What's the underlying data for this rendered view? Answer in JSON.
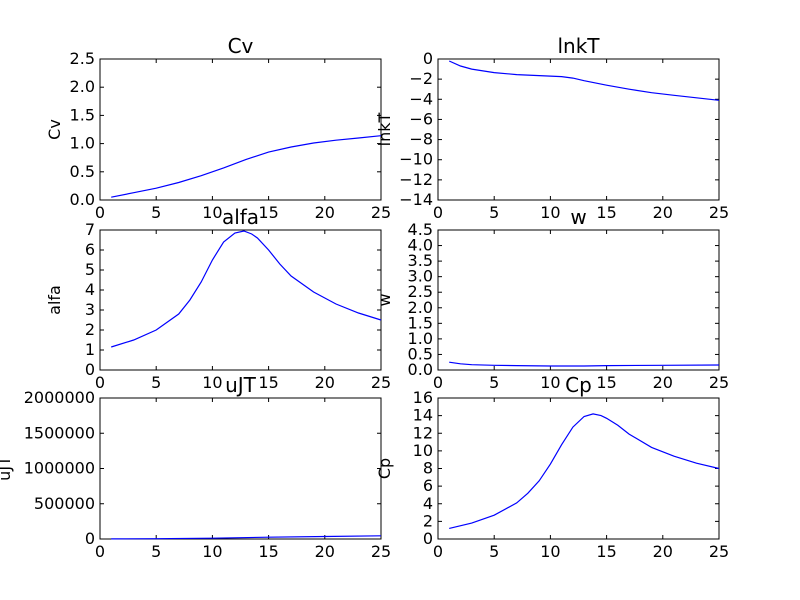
{
  "figure": {
    "colors": {
      "line": "#0000ff",
      "axes": "#000000",
      "background": "#ffffff"
    }
  },
  "chart_data": [
    {
      "type": "line",
      "title": "Cv",
      "ylabel": "Cv",
      "xlabel": "",
      "xlim": [
        0,
        25
      ],
      "ylim": [
        0,
        2.5
      ],
      "xticks": [
        0,
        5,
        10,
        15,
        20,
        25
      ],
      "xtick_labels": [
        "0",
        "5",
        "10",
        "15",
        "20",
        "25"
      ],
      "yticks": [
        0,
        0.5,
        1,
        1.5,
        2,
        2.5
      ],
      "ytick_labels": [
        "0.0",
        "0.5",
        "1.0",
        "1.5",
        "2.0",
        "2.5"
      ],
      "grid": false,
      "x": [
        1,
        3,
        5,
        7,
        9,
        11,
        13,
        15,
        17,
        19,
        21,
        23,
        25
      ],
      "y": [
        0.05,
        0.13,
        0.21,
        0.31,
        0.43,
        0.57,
        0.72,
        0.85,
        0.94,
        1.01,
        1.06,
        1.1,
        1.14
      ]
    },
    {
      "type": "line",
      "title": "lnkT",
      "ylabel": "lnkT",
      "xlabel": "",
      "xlim": [
        0,
        25
      ],
      "ylim": [
        -14,
        0
      ],
      "xticks": [
        0,
        5,
        10,
        15,
        20,
        25
      ],
      "xtick_labels": [
        "0",
        "5",
        "10",
        "15",
        "20",
        "25"
      ],
      "yticks": [
        -14,
        -12,
        -10,
        -8,
        -6,
        -4,
        -2,
        0
      ],
      "ytick_labels": [
        "−14",
        "−12",
        "−10",
        "−8",
        "−6",
        "−4",
        "−2",
        "0"
      ],
      "grid": false,
      "x": [
        1,
        2,
        3,
        5,
        7,
        9,
        11,
        12,
        13,
        15,
        17,
        19,
        21,
        23,
        25
      ],
      "y": [
        -0.2,
        -0.7,
        -1.0,
        -1.35,
        -1.55,
        -1.65,
        -1.75,
        -1.9,
        -2.15,
        -2.6,
        -3.0,
        -3.35,
        -3.6,
        -3.85,
        -4.1
      ]
    },
    {
      "type": "line",
      "title": "alfa",
      "ylabel": "alfa",
      "xlabel": "",
      "xlim": [
        0,
        25
      ],
      "ylim": [
        0,
        7
      ],
      "xticks": [
        0,
        5,
        10,
        15,
        20,
        25
      ],
      "xtick_labels": [
        "0",
        "5",
        "10",
        "15",
        "20",
        "25"
      ],
      "yticks": [
        0,
        1,
        2,
        3,
        4,
        5,
        6,
        7
      ],
      "ytick_labels": [
        "0",
        "1",
        "2",
        "3",
        "4",
        "5",
        "6",
        "7"
      ],
      "grid": false,
      "x": [
        1,
        3,
        5,
        7,
        8,
        9,
        10,
        11,
        12,
        12.8,
        13.5,
        14,
        15,
        16,
        17,
        19,
        21,
        23,
        25
      ],
      "y": [
        1.15,
        1.5,
        2.0,
        2.8,
        3.5,
        4.4,
        5.5,
        6.4,
        6.85,
        6.95,
        6.8,
        6.6,
        6.0,
        5.3,
        4.7,
        3.9,
        3.3,
        2.85,
        2.5
      ]
    },
    {
      "type": "line",
      "title": "w",
      "ylabel": "w",
      "xlabel": "",
      "xlim": [
        0,
        25
      ],
      "ylim": [
        0,
        4.5
      ],
      "xticks": [
        0,
        5,
        10,
        15,
        20,
        25
      ],
      "xtick_labels": [
        "0",
        "5",
        "10",
        "15",
        "20",
        "25"
      ],
      "yticks": [
        0,
        0.5,
        1,
        1.5,
        2,
        2.5,
        3,
        3.5,
        4,
        4.5
      ],
      "ytick_labels": [
        "0.0",
        "0.5",
        "1.0",
        "1.5",
        "2.0",
        "2.5",
        "3.0",
        "3.5",
        "4.0",
        "4.5"
      ],
      "grid": false,
      "x": [
        1,
        2,
        3,
        5,
        7,
        10,
        13,
        15,
        20,
        25
      ],
      "y": [
        0.25,
        0.2,
        0.17,
        0.15,
        0.14,
        0.13,
        0.13,
        0.14,
        0.15,
        0.16
      ]
    },
    {
      "type": "line",
      "title": "uJT",
      "ylabel": "uJT",
      "xlabel": "",
      "xlim": [
        0,
        25
      ],
      "ylim": [
        0,
        2000000
      ],
      "xticks": [
        0,
        5,
        10,
        15,
        20,
        25
      ],
      "xtick_labels": [
        "0",
        "5",
        "10",
        "15",
        "20",
        "25"
      ],
      "yticks": [
        0,
        500000,
        1000000,
        1500000,
        2000000
      ],
      "ytick_labels": [
        "0",
        "500000",
        "1000000",
        "1500000",
        "2000000"
      ],
      "grid": false,
      "x": [
        1,
        5,
        10,
        15,
        20,
        25
      ],
      "y": [
        1000,
        4000,
        12000,
        25000,
        36000,
        45000
      ]
    },
    {
      "type": "line",
      "title": "Cp",
      "ylabel": "Cp",
      "xlabel": "",
      "xlim": [
        0,
        25
      ],
      "ylim": [
        0,
        16
      ],
      "xticks": [
        0,
        5,
        10,
        15,
        20,
        25
      ],
      "xtick_labels": [
        "0",
        "5",
        "10",
        "15",
        "20",
        "25"
      ],
      "yticks": [
        0,
        2,
        4,
        6,
        8,
        10,
        12,
        14,
        16
      ],
      "ytick_labels": [
        "0",
        "2",
        "4",
        "6",
        "8",
        "10",
        "12",
        "14",
        "16"
      ],
      "grid": false,
      "x": [
        1,
        3,
        5,
        7,
        8,
        9,
        10,
        11,
        12,
        13,
        13.8,
        14.5,
        15,
        16,
        17,
        19,
        21,
        23,
        25
      ],
      "y": [
        1.2,
        1.8,
        2.7,
        4.1,
        5.2,
        6.6,
        8.5,
        10.7,
        12.7,
        13.9,
        14.2,
        14.0,
        13.7,
        12.9,
        11.9,
        10.4,
        9.4,
        8.6,
        8.0
      ]
    }
  ]
}
